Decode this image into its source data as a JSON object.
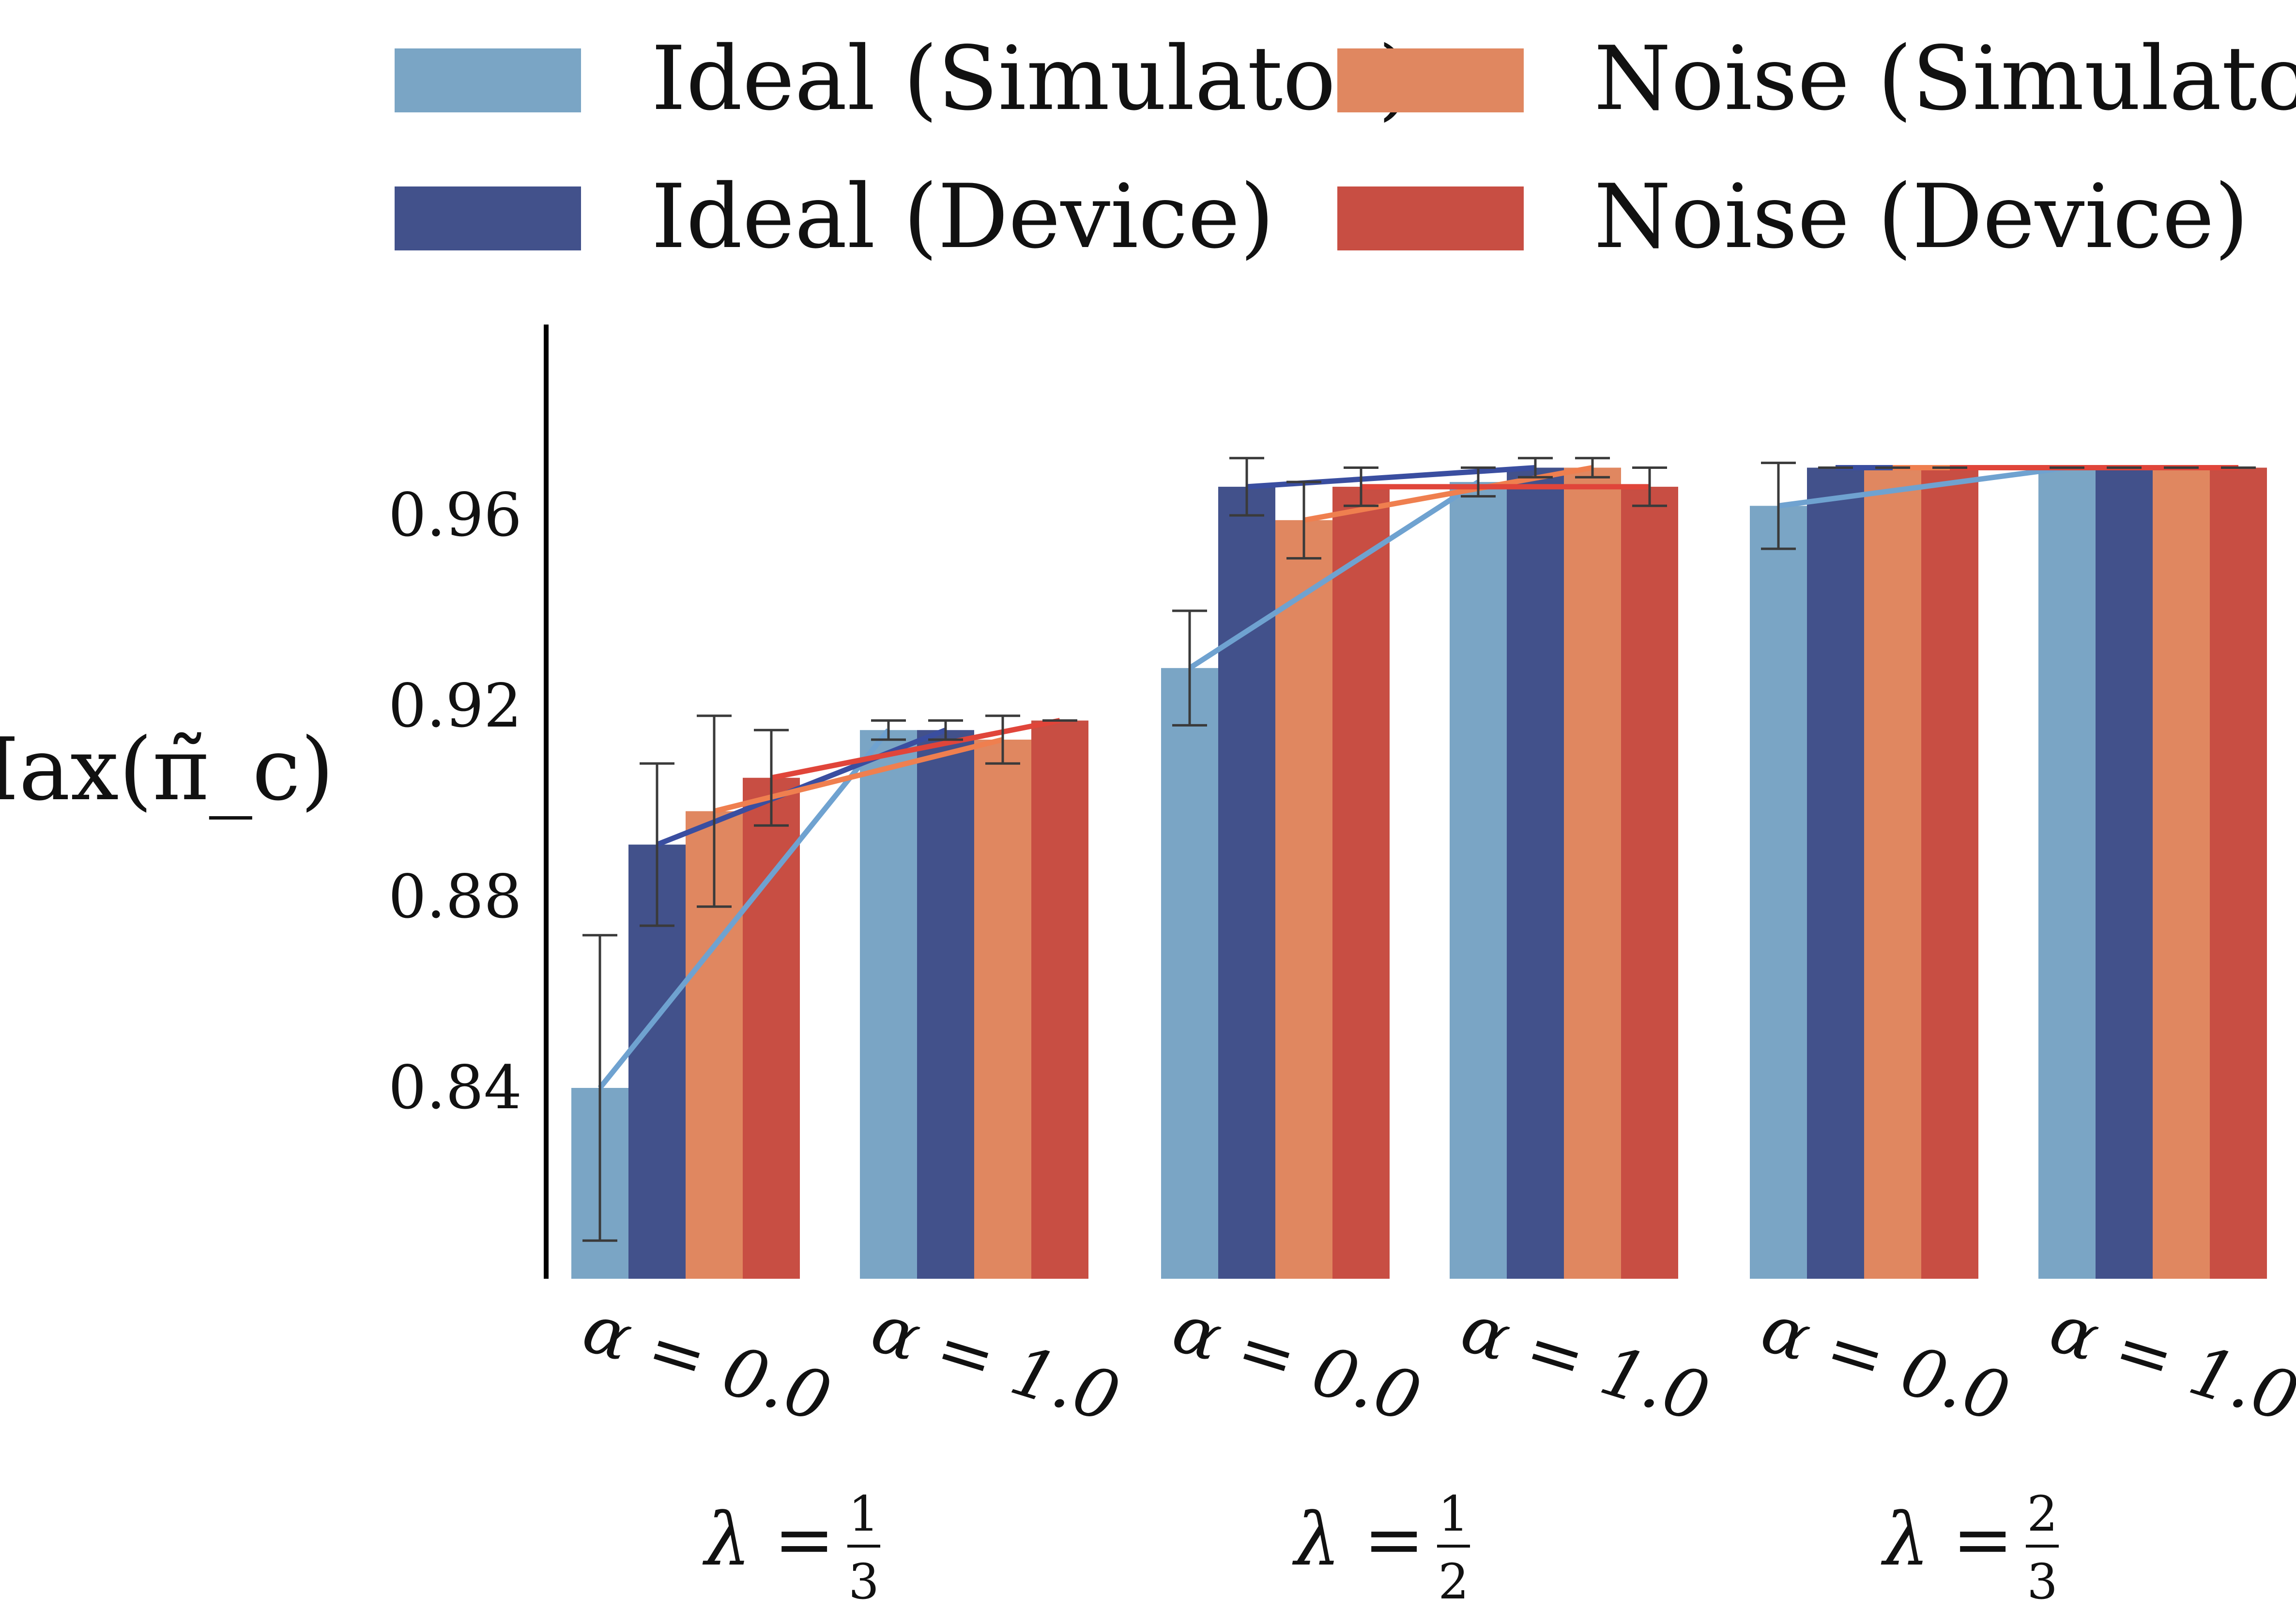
{
  "chart_data": {
    "type": "bar",
    "title": "",
    "xlabel": "",
    "ylabel": "Max(π̃_c)",
    "ylim": [
      0.8,
      1.0
    ],
    "yticks": [
      0.84,
      0.88,
      0.92,
      0.96
    ],
    "grid": false,
    "legend_position": "top",
    "categories": [
      "α = 0.0",
      "α = 1.0",
      "α = 0.0",
      "α = 1.0",
      "α = 0.0",
      "α = 1.0"
    ],
    "groups": [
      {
        "label": "λ = 1/3",
        "lambda": "λ =",
        "num": "1",
        "den": "3",
        "categories": [
          0,
          1
        ]
      },
      {
        "label": "λ = 1/2",
        "lambda": "λ =",
        "num": "1",
        "den": "2",
        "categories": [
          2,
          3
        ]
      },
      {
        "label": "λ = 2/3",
        "lambda": "λ =",
        "num": "2",
        "den": "3",
        "categories": [
          4,
          5
        ]
      }
    ],
    "series": [
      {
        "name": "Ideal (Simulator)",
        "color": "#7aa5c5",
        "line_color": "#6fa2d0",
        "values": [
          0.84,
          0.915,
          0.928,
          0.967,
          0.962,
          0.97
        ],
        "errors": [
          0.032,
          0.002,
          0.012,
          0.003,
          0.009,
          0.0
        ]
      },
      {
        "name": "Ideal (Device)",
        "color": "#42518b",
        "line_color": "#3a4ea0",
        "values": [
          0.891,
          0.915,
          0.966,
          0.97,
          0.97,
          0.97
        ],
        "errors": [
          0.017,
          0.002,
          0.006,
          0.002,
          0.0,
          0.0
        ]
      },
      {
        "name": "Noise (Simulator)",
        "color": "#e08760",
        "line_color": "#ef7f4f",
        "values": [
          0.898,
          0.913,
          0.959,
          0.97,
          0.97,
          0.97
        ],
        "errors": [
          0.02,
          0.005,
          0.008,
          0.002,
          0.0,
          0.0
        ]
      },
      {
        "name": "Noise (Device)",
        "color": "#c84e43",
        "line_color": "#e0453a",
        "values": [
          0.905,
          0.917,
          0.966,
          0.966,
          0.97,
          0.97
        ],
        "errors": [
          0.01,
          0.0,
          0.004,
          0.004,
          0.0,
          0.0
        ]
      }
    ]
  }
}
